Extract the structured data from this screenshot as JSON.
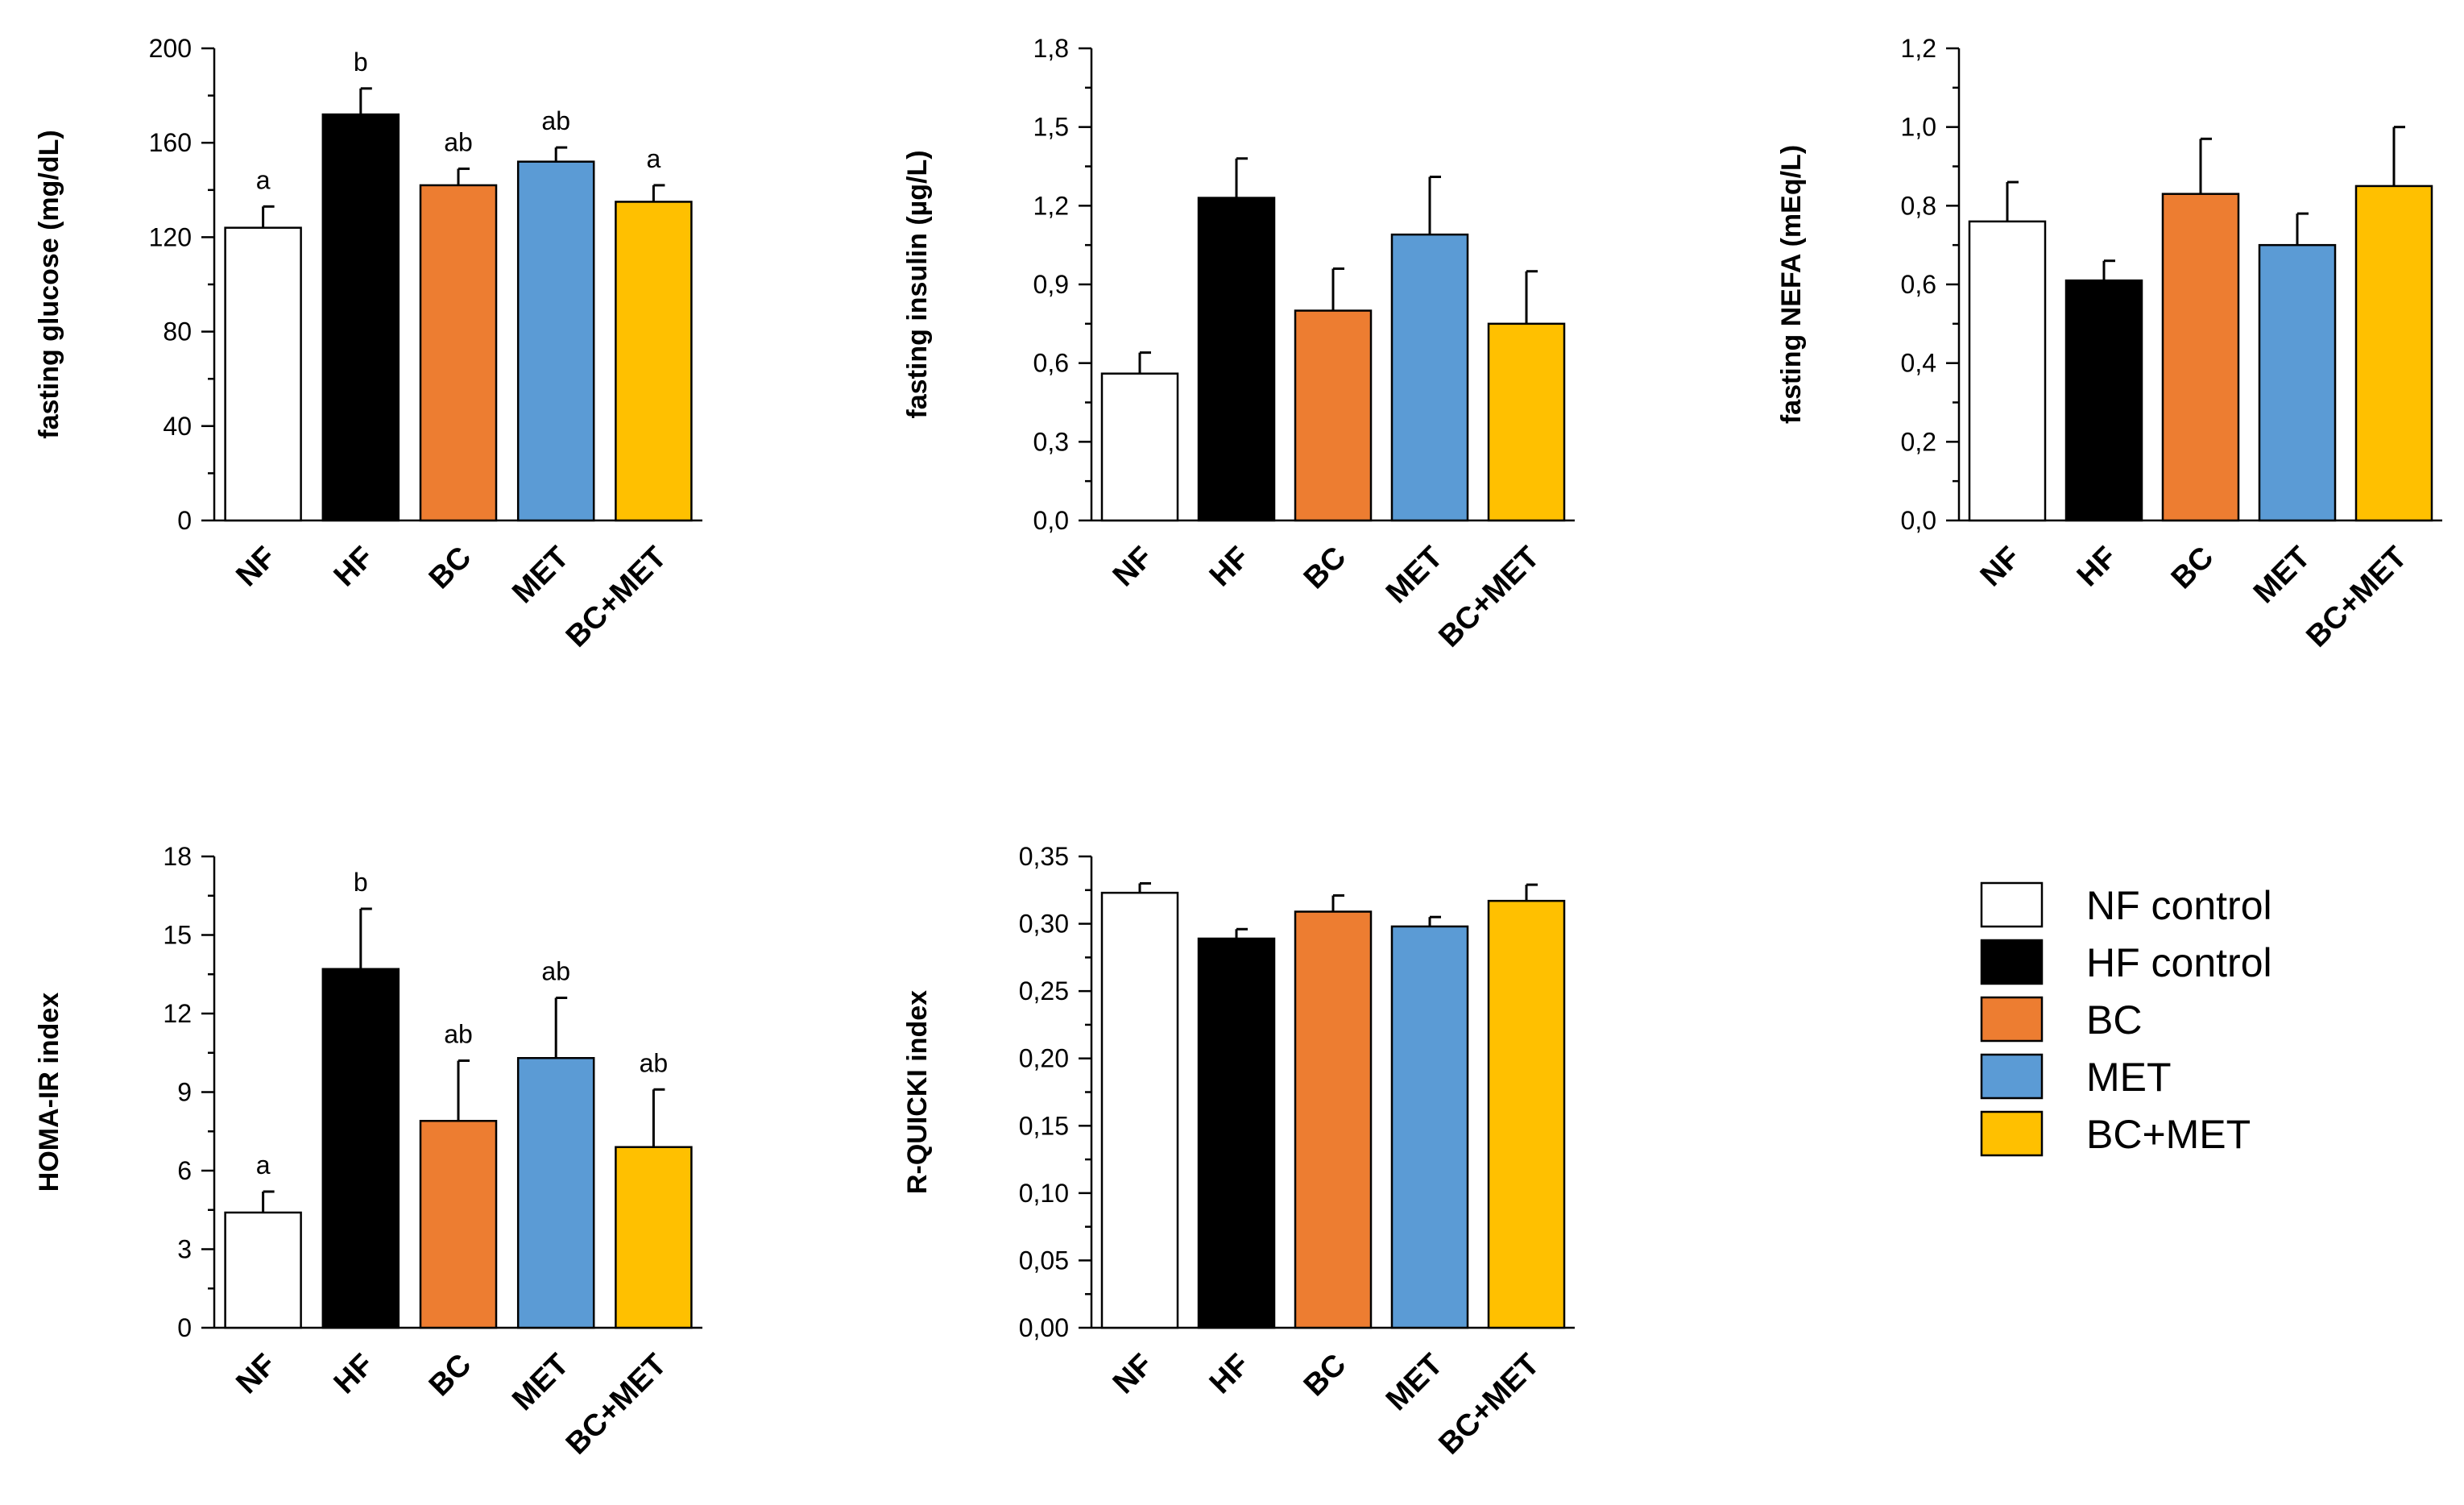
{
  "legend": [
    {
      "label": "NF control",
      "color": "#ffffff"
    },
    {
      "label": "HF control",
      "color": "#000000"
    },
    {
      "label": "BC",
      "color": "#ed7d31"
    },
    {
      "label": "MET",
      "color": "#5b9bd5"
    },
    {
      "label": "BC+MET",
      "color": "#ffc000"
    }
  ],
  "chart_data": [
    {
      "type": "bar",
      "id": "glucose",
      "ylabel": "fasting glucose (mg/dL)",
      "categories": [
        "NF",
        "HF",
        "BC",
        "MET",
        "BC+MET"
      ],
      "values": [
        124,
        172,
        142,
        152,
        135
      ],
      "errors": [
        9,
        11,
        7,
        6,
        7
      ],
      "significance": [
        "a",
        "b",
        "ab",
        "ab",
        "a"
      ],
      "ylim": [
        0,
        200
      ],
      "yticks": [
        "0",
        "40",
        "80",
        "120",
        "160",
        "200"
      ],
      "colors": [
        "#ffffff",
        "#000000",
        "#ed7d31",
        "#5b9bd5",
        "#ffc000"
      ]
    },
    {
      "type": "bar",
      "id": "insulin",
      "ylabel": "fasting insulin (µg/L)",
      "categories": [
        "NF",
        "HF",
        "BC",
        "MET",
        "BC+MET"
      ],
      "values": [
        0.56,
        1.23,
        0.8,
        1.09,
        0.75
      ],
      "errors": [
        0.08,
        0.15,
        0.16,
        0.22,
        0.2
      ],
      "significance": [
        "",
        "",
        "",
        "",
        ""
      ],
      "ylim": [
        0,
        1.8
      ],
      "yticks": [
        "0,0",
        "0,3",
        "0,6",
        "0,9",
        "1,2",
        "1,5",
        "1,8"
      ],
      "colors": [
        "#ffffff",
        "#000000",
        "#ed7d31",
        "#5b9bd5",
        "#ffc000"
      ]
    },
    {
      "type": "bar",
      "id": "nefa",
      "ylabel": "fasting NEFA (mEq/L)",
      "categories": [
        "NF",
        "HF",
        "BC",
        "MET",
        "BC+MET"
      ],
      "values": [
        0.76,
        0.61,
        0.83,
        0.7,
        0.85
      ],
      "errors": [
        0.1,
        0.05,
        0.14,
        0.08,
        0.15
      ],
      "significance": [
        "",
        "",
        "",
        "",
        ""
      ],
      "ylim": [
        0,
        1.2
      ],
      "yticks": [
        "0,0",
        "0,2",
        "0,4",
        "0,6",
        "0,8",
        "1,0",
        "1,2"
      ],
      "colors": [
        "#ffffff",
        "#000000",
        "#ed7d31",
        "#5b9bd5",
        "#ffc000"
      ]
    },
    {
      "type": "bar",
      "id": "homa",
      "ylabel": "HOMA-IR index",
      "categories": [
        "NF",
        "HF",
        "BC",
        "MET",
        "BC+MET"
      ],
      "values": [
        4.4,
        13.7,
        7.9,
        10.3,
        6.9
      ],
      "errors": [
        0.8,
        2.3,
        2.3,
        2.3,
        2.2
      ],
      "significance": [
        "a",
        "b",
        "ab",
        "ab",
        "ab"
      ],
      "ylim": [
        0,
        18
      ],
      "yticks": [
        "0",
        "3",
        "6",
        "9",
        "12",
        "15",
        "18"
      ],
      "colors": [
        "#ffffff",
        "#000000",
        "#ed7d31",
        "#5b9bd5",
        "#ffc000"
      ]
    },
    {
      "type": "bar",
      "id": "rquicki",
      "ylabel": "R-QUICKI index",
      "categories": [
        "NF",
        "HF",
        "BC",
        "MET",
        "BC+MET"
      ],
      "values": [
        0.323,
        0.289,
        0.309,
        0.298,
        0.317
      ],
      "errors": [
        0.007,
        0.007,
        0.012,
        0.007,
        0.012
      ],
      "significance": [
        "",
        "",
        "",
        "",
        ""
      ],
      "ylim": [
        0,
        0.35
      ],
      "yticks": [
        "0,00",
        "0,05",
        "0,10",
        "0,15",
        "0,20",
        "0,25",
        "0,30",
        "0,35"
      ],
      "colors": [
        "#ffffff",
        "#000000",
        "#ed7d31",
        "#5b9bd5",
        "#ffc000"
      ]
    }
  ]
}
